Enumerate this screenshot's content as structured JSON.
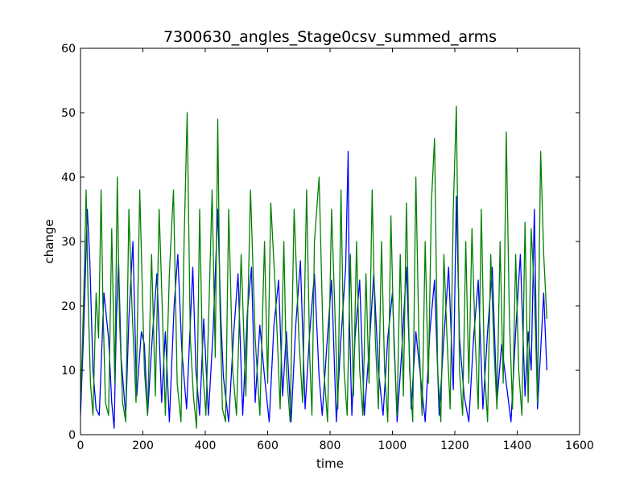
{
  "chart_data": {
    "type": "line",
    "title": "7300630_angles_Stage0csv_summed_arms",
    "xlabel": "time",
    "ylabel": "change",
    "xlim": [
      0,
      1600
    ],
    "ylim": [
      0,
      60
    ],
    "xticks": [
      "0",
      "200",
      "400",
      "600",
      "800",
      "1000",
      "1200",
      "1400",
      "1600"
    ],
    "yticks": [
      "0",
      "10",
      "20",
      "30",
      "40",
      "50",
      "60"
    ],
    "grid": false,
    "legend": "none",
    "series": [
      {
        "color": "#0000ff",
        "x": [
          0,
          10,
          22,
          30,
          40,
          50,
          60,
          75,
          90,
          100,
          108,
          115,
          122,
          130,
          145,
          155,
          168,
          180,
          195,
          205,
          215,
          230,
          245,
          260,
          272,
          285,
          300,
          312,
          325,
          340,
          350,
          360,
          370,
          382,
          395,
          410,
          425,
          440,
          450,
          458,
          465,
          475,
          490,
          505,
          520,
          535,
          548,
          560,
          575,
          590,
          605,
          620,
          635,
          648,
          660,
          675,
          690,
          705,
          720,
          735,
          750,
          765,
          775,
          790,
          805,
          820,
          835,
          850,
          858,
          862,
          870,
          880,
          895,
          910,
          925,
          940,
          955,
          970,
          985,
          1000,
          1015,
          1030,
          1045,
          1060,
          1075,
          1090,
          1105,
          1120,
          1135,
          1150,
          1165,
          1180,
          1195,
          1205,
          1215,
          1230,
          1245,
          1260,
          1275,
          1290,
          1305,
          1320,
          1335,
          1350,
          1365,
          1380,
          1395,
          1410,
          1425,
          1435,
          1445,
          1455,
          1465,
          1475,
          1485,
          1495
        ],
        "y": [
          3,
          16,
          35,
          27,
          10,
          4,
          3,
          22,
          15,
          5,
          1,
          18,
          27,
          12,
          3,
          18,
          30,
          6,
          16,
          14,
          3,
          15,
          25,
          5,
          16,
          2,
          20,
          28,
          13,
          4,
          15,
          26,
          10,
          3,
          18,
          3,
          16,
          35,
          18,
          9,
          6,
          2,
          15,
          25,
          3,
          19,
          26,
          5,
          17,
          9,
          2,
          17,
          24,
          6,
          16,
          2,
          17,
          27,
          4,
          16,
          25,
          9,
          3,
          14,
          24,
          2,
          15,
          26,
          44,
          18,
          3,
          15,
          24,
          3,
          13,
          25,
          10,
          3,
          15,
          22,
          2,
          13,
          26,
          4,
          16,
          9,
          2,
          16,
          24,
          3,
          15,
          26,
          7,
          37,
          15,
          6,
          2,
          15,
          24,
          4,
          16,
          26,
          5,
          14,
          8,
          2,
          16,
          28,
          6,
          16,
          10,
          35,
          4,
          13,
          22,
          10
        ]
      },
      {
        "color": "#008000",
        "x": [
          0,
          5,
          12,
          18,
          25,
          32,
          40,
          50,
          58,
          66,
          72,
          80,
          90,
          100,
          110,
          118,
          125,
          135,
          145,
          155,
          165,
          178,
          190,
          205,
          215,
          228,
          240,
          252,
          262,
          272,
          285,
          298,
          310,
          322,
          332,
          342,
          352,
          362,
          372,
          382,
          392,
          402,
          412,
          422,
          432,
          440,
          447,
          455,
          465,
          475,
          488,
          500,
          515,
          530,
          545,
          560,
          575,
          590,
          600,
          610,
          625,
          640,
          652,
          660,
          672,
          685,
          700,
          712,
          725,
          735,
          742,
          750,
          765,
          780,
          792,
          805,
          815,
          825,
          835,
          845,
          855,
          865,
          875,
          885,
          895,
          905,
          915,
          925,
          935,
          945,
          955,
          965,
          975,
          985,
          995,
          1005,
          1015,
          1025,
          1035,
          1045,
          1055,
          1065,
          1075,
          1085,
          1095,
          1105,
          1115,
          1125,
          1135,
          1145,
          1155,
          1165,
          1175,
          1185,
          1195,
          1205,
          1215,
          1225,
          1235,
          1245,
          1255,
          1265,
          1275,
          1285,
          1295,
          1305,
          1315,
          1325,
          1335,
          1345,
          1355,
          1365,
          1375,
          1385,
          1395,
          1405,
          1415,
          1425,
          1435,
          1445,
          1455,
          1465,
          1475,
          1485,
          1495
        ],
        "y": [
          5,
          12,
          25,
          38,
          20,
          8,
          3,
          22,
          15,
          38,
          20,
          5,
          3,
          32,
          8,
          40,
          18,
          5,
          2,
          35,
          20,
          5,
          38,
          10,
          3,
          28,
          6,
          35,
          20,
          3,
          25,
          38,
          8,
          2,
          30,
          50,
          15,
          6,
          1,
          35,
          10,
          3,
          20,
          38,
          12,
          49,
          20,
          4,
          2,
          35,
          10,
          3,
          28,
          6,
          38,
          15,
          3,
          30,
          8,
          36,
          22,
          4,
          30,
          10,
          2,
          35,
          15,
          5,
          38,
          12,
          3,
          30,
          40,
          10,
          2,
          35,
          20,
          4,
          38,
          10,
          3,
          28,
          6,
          30,
          10,
          3,
          25,
          8,
          38,
          15,
          4,
          30,
          10,
          2,
          34,
          14,
          3,
          28,
          6,
          36,
          10,
          2,
          40,
          15,
          3,
          30,
          8,
          36,
          46,
          10,
          2,
          28,
          15,
          4,
          35,
          51,
          10,
          3,
          30,
          8,
          32,
          15,
          4,
          35,
          10,
          2,
          28,
          14,
          4,
          30,
          8,
          47,
          18,
          4,
          28,
          10,
          3,
          33,
          5,
          32,
          22,
          5,
          44,
          28,
          18
        ]
      }
    ]
  }
}
